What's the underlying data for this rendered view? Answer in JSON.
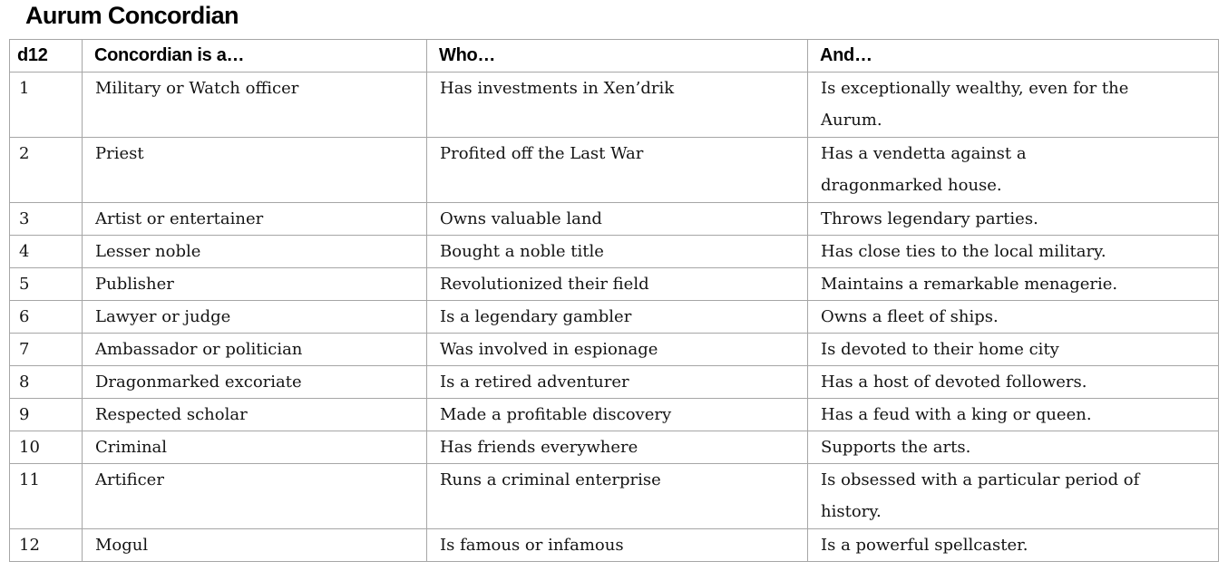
{
  "title": "Aurum Concordian",
  "colors": {
    "background": "#ffffff",
    "table_border": "#a6a6a6",
    "heading_text": "#000000",
    "body_text": "#141414"
  },
  "table": {
    "headers": [
      "d12",
      "Concordian is a…",
      "Who…",
      "And…"
    ],
    "rows": [
      {
        "d12": "1",
        "concordian": "Military or Watch officer",
        "who": "Has investments in Xen’drik",
        "and": "Is exceptionally wealthy, even for the Aurum."
      },
      {
        "d12": "2",
        "concordian": "Priest",
        "who": "Profited off the Last War",
        "and": "Has a vendetta against a dragonmarked house."
      },
      {
        "d12": "3",
        "concordian": "Artist or entertainer",
        "who": "Owns valuable land",
        "and": "Throws legendary parties."
      },
      {
        "d12": "4",
        "concordian": "Lesser noble",
        "who": "Bought a noble title",
        "and": "Has close ties to the local military."
      },
      {
        "d12": "5",
        "concordian": "Publisher",
        "who": "Revolutionized their field",
        "and": "Maintains a remarkable menagerie."
      },
      {
        "d12": "6",
        "concordian": "Lawyer or judge",
        "who": "Is a legendary gambler",
        "and": "Owns a fleet of ships."
      },
      {
        "d12": "7",
        "concordian": "Ambassador or politician",
        "who": "Was involved in espionage",
        "and": "Is devoted to their home city"
      },
      {
        "d12": "8",
        "concordian": "Dragonmarked excoriate",
        "who": "Is a retired adventurer",
        "and": "Has a host of devoted followers."
      },
      {
        "d12": "9",
        "concordian": "Respected scholar",
        "who": "Made a profitable discovery",
        "and": "Has a feud with a king or queen."
      },
      {
        "d12": "10",
        "concordian": "Criminal",
        "who": "Has friends everywhere",
        "and": "Supports the arts."
      },
      {
        "d12": "11",
        "concordian": "Artificer",
        "who": "Runs a criminal enterprise",
        "and": "Is obsessed with a particular period of history."
      },
      {
        "d12": "12",
        "concordian": "Mogul",
        "who": "Is famous or infamous",
        "and": "Is a powerful spellcaster."
      }
    ]
  }
}
